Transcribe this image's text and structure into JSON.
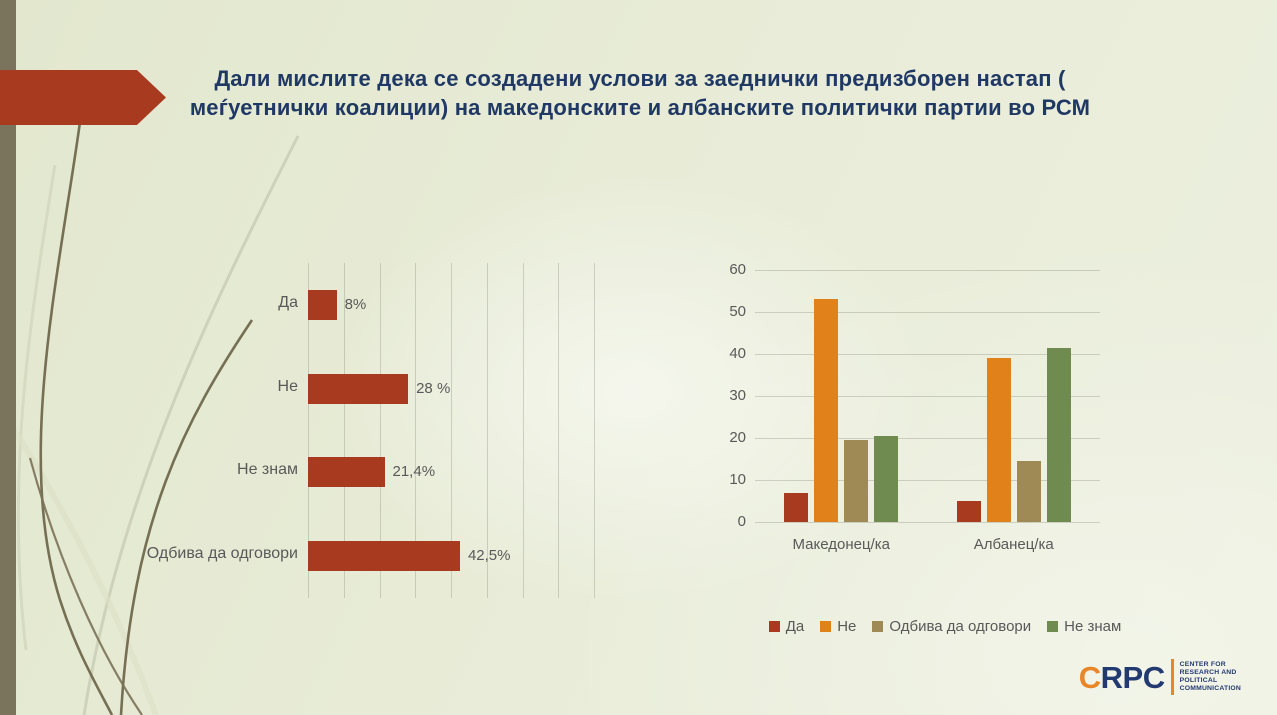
{
  "slide": {
    "title_line1": "Дали мислите дека се создадени услови за заеднички предизборен настап (",
    "title_line2": "меѓуетнички коалиции) на македонските и албанските политички партии во РСМ"
  },
  "colors": {
    "accent_red": "#A83A1F",
    "orange": "#E08119",
    "tan": "#9F8A55",
    "green": "#6F8B4F",
    "title_navy": "#1F3864",
    "label_gray": "#595959",
    "sidebar_olive": "#7A745C",
    "logo_orange": "#E8862A",
    "logo_navy": "#233A70"
  },
  "chart_data": [
    {
      "type": "bar",
      "orientation": "horizontal",
      "title": "",
      "categories": [
        "Да",
        "Не",
        "Не знам",
        "Одбива да одговори"
      ],
      "values": [
        8,
        28,
        21.4,
        42.5
      ],
      "value_labels": [
        "8%",
        "28 %",
        "21,4%",
        "42,5%"
      ],
      "xlabel": "",
      "ylabel": "",
      "xlim": [
        0,
        80
      ],
      "gridline_step": 10,
      "grid": true,
      "bar_color": "#A83A1F",
      "legend_position": "none"
    },
    {
      "type": "bar",
      "orientation": "vertical",
      "title": "",
      "categories": [
        "Македонец/ка",
        "Албанец/ка"
      ],
      "series": [
        {
          "name": "Да",
          "color": "#A83A1F",
          "values": [
            7,
            5
          ]
        },
        {
          "name": "Не",
          "color": "#E08119",
          "values": [
            53,
            39
          ]
        },
        {
          "name": "Одбива да одговори",
          "color": "#9F8A55",
          "values": [
            19.5,
            14.5
          ]
        },
        {
          "name": "Не знам",
          "color": "#6F8B4F",
          "values": [
            20.5,
            41.5
          ]
        }
      ],
      "xlabel": "",
      "ylabel": "",
      "ylim": [
        0,
        60
      ],
      "ytick_step": 10,
      "grid": true,
      "legend_position": "bottom"
    }
  ],
  "logo": {
    "acronym_first": "C",
    "acronym_rest": "RPC",
    "lines": [
      "CENTER FOR",
      "RESEARCH AND",
      "POLITICAL",
      "COMMUNICATION"
    ]
  }
}
